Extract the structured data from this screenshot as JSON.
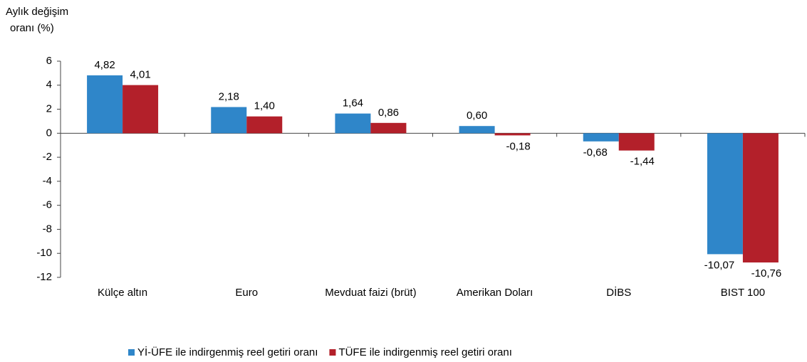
{
  "chart_data": {
    "type": "bar",
    "ylabel": [
      "Aylık değişim",
      "oranı (%)"
    ],
    "categories": [
      "Külçe altın",
      "Euro",
      "Mevduat faizi (brüt)",
      "Amerikan Doları",
      "DİBS",
      "BIST 100"
    ],
    "series": [
      {
        "name": "Yİ-ÜFE ile indirgenmiş reel getiri oranı",
        "color": "#2f86c9",
        "values": [
          4.82,
          2.18,
          1.64,
          0.6,
          -0.68,
          -10.07
        ],
        "value_labels": [
          "4,82",
          "2,18",
          "1,64",
          "0,60",
          "-0,68",
          "-10,07"
        ]
      },
      {
        "name": "TÜFE ile indirgenmiş reel getiri oranı",
        "color": "#b3202a",
        "values": [
          4.01,
          1.4,
          0.86,
          -0.18,
          -1.44,
          -10.76
        ],
        "value_labels": [
          "4,01",
          "1,40",
          "0,86",
          "-0,18",
          "-1,44",
          "-10,76"
        ]
      }
    ],
    "ylim": [
      -12,
      6
    ],
    "yticks": [
      -12,
      -10,
      -8,
      -6,
      -4,
      -2,
      0,
      2,
      4,
      6
    ],
    "legend": "bottom"
  }
}
